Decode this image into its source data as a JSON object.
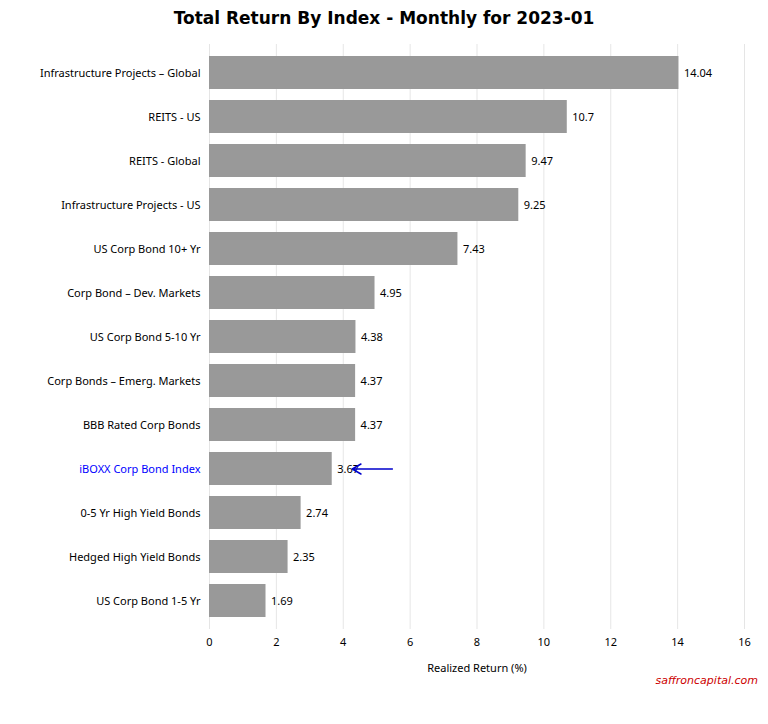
{
  "chart_data": {
    "type": "bar",
    "orientation": "horizontal",
    "title": "Total Return By Index - Monthly for 2023-01",
    "categories": [
      "Infrastructure Projects – Global",
      "REITS - US",
      "REITS - Global",
      "Infrastructure Projects - US",
      "US Corp Bond 10+ Yr",
      "Corp Bond – Dev. Markets",
      "US Corp Bond 5-10 Yr",
      "Corp Bonds – Emerg. Markets",
      "BBB Rated Corp Bonds",
      "iBOXX Corp Bond Index",
      "0-5 Yr High Yield Bonds",
      "Hedged High Yield Bonds",
      "US Corp Bond 1-5 Yr"
    ],
    "values": [
      14.04,
      10.7,
      9.47,
      9.25,
      7.43,
      4.95,
      4.38,
      4.37,
      4.37,
      3.67,
      2.74,
      2.35,
      1.69
    ],
    "color": "#999999",
    "xlabel": "Realized Return (%)",
    "xlim": [
      0,
      16
    ],
    "xticks": [
      0,
      2,
      4,
      6,
      8,
      10,
      12,
      14,
      16
    ],
    "grid": true,
    "data_labels": true,
    "annotations": [
      {
        "category": "iBOXX Corp Bond Index",
        "label_color": "#0000FF",
        "arrow_color": "#0000CC"
      }
    ],
    "watermark": {
      "text": "saffroncapital.com",
      "color": "#CC0000"
    }
  }
}
